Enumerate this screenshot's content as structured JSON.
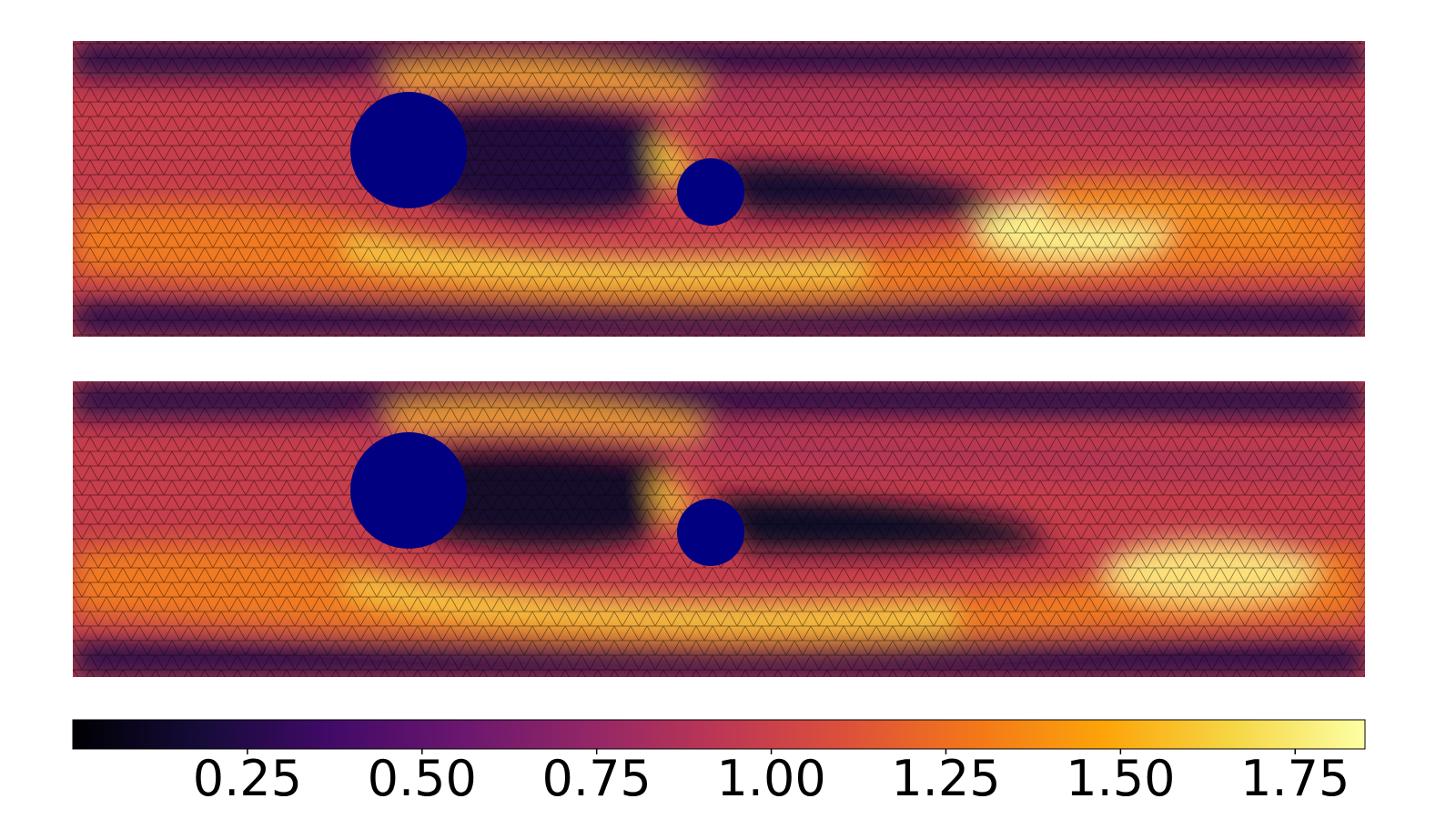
{
  "chart_data": {
    "type": "heatmap",
    "colormap": "inferno",
    "mesh": "triangular",
    "panels": [
      {
        "name": "",
        "obstacles": [
          {
            "cx": 0.26,
            "cy": 0.37,
            "r": 0.085,
            "color": "#000080"
          },
          {
            "cx": 0.495,
            "cy": 0.51,
            "r": 0.05,
            "color": "#000080"
          }
        ]
      },
      {
        "name": "",
        "obstacles": [
          {
            "cx": 0.26,
            "cy": 0.37,
            "r": 0.085,
            "color": "#000080"
          },
          {
            "cx": 0.495,
            "cy": 0.51,
            "r": 0.05,
            "color": "#000080"
          }
        ]
      }
    ],
    "colorbar": {
      "range": [
        0.0,
        1.85
      ],
      "ticks": [
        0.25,
        0.5,
        0.75,
        1.0,
        1.25,
        1.5,
        1.75
      ],
      "tick_labels": [
        "0.25",
        "0.50",
        "0.75",
        "1.00",
        "1.25",
        "1.50",
        "1.75"
      ]
    }
  }
}
